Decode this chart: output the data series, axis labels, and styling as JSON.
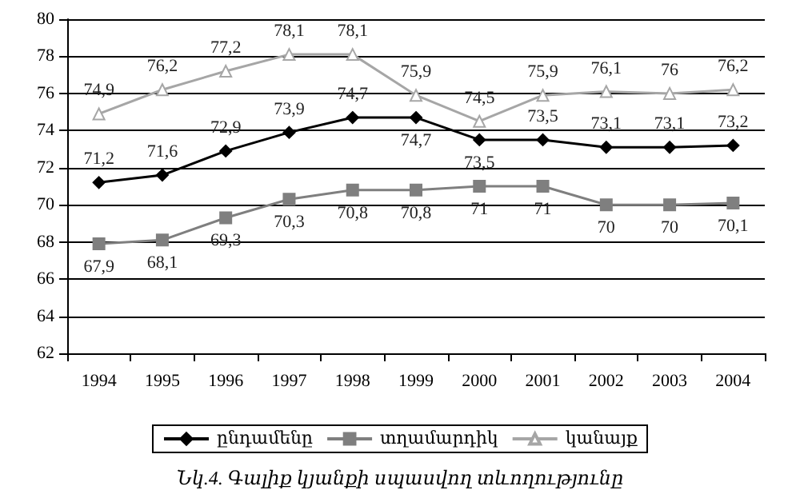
{
  "chart_data": {
    "type": "line",
    "categories": [
      "1994",
      "1995",
      "1996",
      "1997",
      "1998",
      "1999",
      "2000",
      "2001",
      "2002",
      "2003",
      "2004"
    ],
    "series": [
      {
        "name": "ընդամենը",
        "color": "#000000",
        "marker": "diamond",
        "values": [
          71.2,
          71.6,
          72.9,
          73.9,
          74.7,
          74.7,
          73.5,
          73.5,
          73.1,
          73.1,
          73.2
        ],
        "value_labels": [
          "71,2",
          "71,6",
          "72,9",
          "73,9",
          "74,7",
          "74,7",
          "73,5",
          "73,5",
          "73,1",
          "73,1",
          "73,2"
        ]
      },
      {
        "name": "տղամարդիկ",
        "color": "#7f7f7f",
        "marker": "square",
        "values": [
          67.9,
          68.1,
          69.3,
          70.3,
          70.8,
          70.8,
          71,
          71,
          70,
          70,
          70.1
        ],
        "value_labels": [
          "67,9",
          "68,1",
          "69,3",
          "70,3",
          "70,8",
          "70,8",
          "71",
          "71",
          "70",
          "70",
          "70,1"
        ]
      },
      {
        "name": "կանայք",
        "color": "#a6a6a6",
        "marker": "triangle",
        "values": [
          74.9,
          76.2,
          77.2,
          78.1,
          78.1,
          75.9,
          74.5,
          75.9,
          76.1,
          76,
          76.2
        ],
        "value_labels": [
          "74,9",
          "76,2",
          "77,2",
          "78,1",
          "78,1",
          "75,9",
          "74,5",
          "75,9",
          "76,1",
          "76",
          "76,2"
        ]
      }
    ],
    "ylim": [
      62,
      80
    ],
    "yticks": [
      62,
      64,
      66,
      68,
      70,
      72,
      74,
      76,
      78,
      80
    ],
    "grid": "y",
    "legend": "bottom",
    "annotations": [
      "Նկ.4. Գալիք կյանքի սպասվող տևողությունը"
    ]
  }
}
